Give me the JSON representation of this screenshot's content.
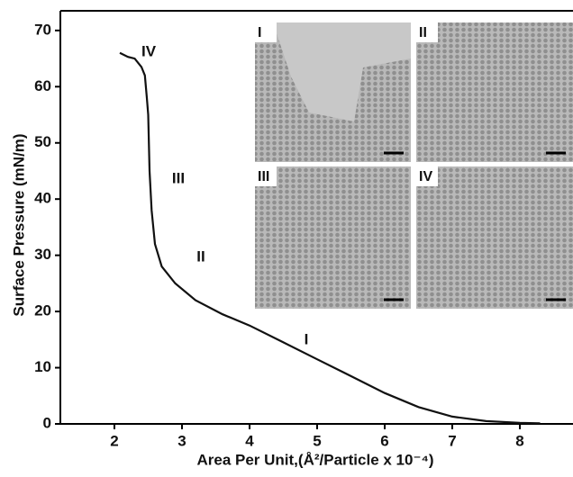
{
  "chart_data": {
    "type": "line",
    "x_label": "Area Per Unit,(Å²/Particle x 10⁻⁴)",
    "y_label": "Surface Pressure (mN/m)",
    "xlim": [
      1.2,
      8.8
    ],
    "ylim": [
      0,
      73.5
    ],
    "xticks": [
      2,
      3,
      4,
      5,
      6,
      7,
      8
    ],
    "yticks": [
      0,
      10,
      20,
      30,
      40,
      50,
      60,
      70
    ],
    "series": [
      {
        "color": "#111111",
        "x": [
          2.08,
          2.2,
          2.3,
          2.4,
          2.45,
          2.48,
          2.5,
          2.52,
          2.55,
          2.6,
          2.7,
          2.9,
          3.2,
          3.6,
          4.0,
          4.5,
          5.0,
          5.5,
          6.0,
          6.5,
          7.0,
          7.5,
          8.0,
          8.3
        ],
        "values": [
          66,
          65.3,
          65,
          63.5,
          62,
          58,
          55,
          45,
          38,
          32,
          28,
          25,
          22,
          19.5,
          17.5,
          14.5,
          11.5,
          8.5,
          5.5,
          3,
          1.3,
          0.5,
          0.2,
          0.1
        ]
      }
    ],
    "annotations": [
      "IV",
      "III",
      "II",
      "I"
    ],
    "insets": [
      "I",
      "II",
      "III",
      "IV"
    ]
  }
}
